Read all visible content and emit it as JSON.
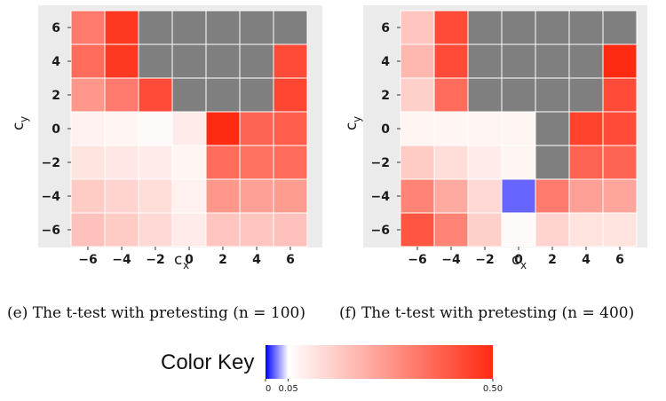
{
  "chart_data": [
    {
      "type": "heatmap",
      "caption": "(e) The t-test with pretesting (n = 100)",
      "xlabel": "c",
      "xlabel_sub": "x",
      "ylabel": "c",
      "ylabel_sub": "y",
      "x": [
        -6,
        -4,
        -2,
        0,
        2,
        4,
        6
      ],
      "y": [
        6,
        4,
        2,
        0,
        -2,
        -4,
        -6
      ],
      "x_tick_labels": [
        "−6",
        "−4",
        "−2",
        "0",
        "2",
        "4",
        "6"
      ],
      "y_tick_labels": [
        "6",
        "4",
        "2",
        "0",
        "−2",
        "−4",
        "−6"
      ],
      "missing_color": "#7f7f7f",
      "values": [
        [
          0.33,
          0.47,
          null,
          null,
          null,
          null,
          null
        ],
        [
          0.36,
          0.47,
          null,
          null,
          null,
          null,
          0.43
        ],
        [
          0.27,
          0.33,
          0.43,
          null,
          null,
          null,
          0.44
        ],
        [
          0.08,
          0.07,
          0.06,
          0.09,
          0.5,
          0.38,
          0.39
        ],
        [
          0.11,
          0.1,
          0.09,
          0.07,
          0.36,
          0.35,
          0.36
        ],
        [
          0.16,
          0.14,
          0.12,
          0.08,
          0.27,
          0.25,
          0.26
        ],
        [
          0.18,
          0.16,
          0.13,
          0.09,
          0.17,
          0.17,
          0.18
        ]
      ]
    },
    {
      "type": "heatmap",
      "caption": "(f) The t-test with pretesting (n = 400)",
      "xlabel": "c",
      "xlabel_sub": "x",
      "ylabel": "c",
      "ylabel_sub": "y",
      "x": [
        -6,
        -4,
        -2,
        0,
        2,
        4,
        6
      ],
      "y": [
        6,
        4,
        2,
        0,
        -2,
        -4,
        -6
      ],
      "x_tick_labels": [
        "−6",
        "−4",
        "−2",
        "0",
        "2",
        "4",
        "6"
      ],
      "y_tick_labels": [
        "6",
        "4",
        "2",
        "0",
        "−2",
        "−4",
        "−6"
      ],
      "missing_color": "#7f7f7f",
      "values": [
        [
          0.17,
          0.43,
          null,
          null,
          null,
          null,
          null
        ],
        [
          0.2,
          0.43,
          null,
          null,
          null,
          null,
          0.5
        ],
        [
          0.15,
          0.36,
          null,
          null,
          null,
          null,
          0.43
        ],
        [
          0.07,
          0.07,
          0.07,
          0.07,
          null,
          0.45,
          0.43
        ],
        [
          0.16,
          0.12,
          0.09,
          0.07,
          null,
          0.38,
          0.38
        ],
        [
          0.31,
          0.23,
          0.13,
          0.02,
          0.33,
          0.25,
          0.24
        ],
        [
          0.41,
          0.31,
          0.15,
          0.06,
          0.14,
          0.11,
          0.11
        ]
      ]
    }
  ],
  "color_key": {
    "title": "Color Key",
    "range": [
      0,
      0.5
    ],
    "midpoint": 0.05,
    "stops": [
      {
        "value": 0,
        "color": "#0000ff"
      },
      {
        "value": 0.05,
        "color": "#ffffff"
      },
      {
        "value": 0.5,
        "color": "#ff2a12"
      }
    ],
    "tick_labels": [
      "0",
      "0.05",
      "0.50"
    ],
    "tick_values": [
      0,
      0.05,
      0.5
    ]
  }
}
